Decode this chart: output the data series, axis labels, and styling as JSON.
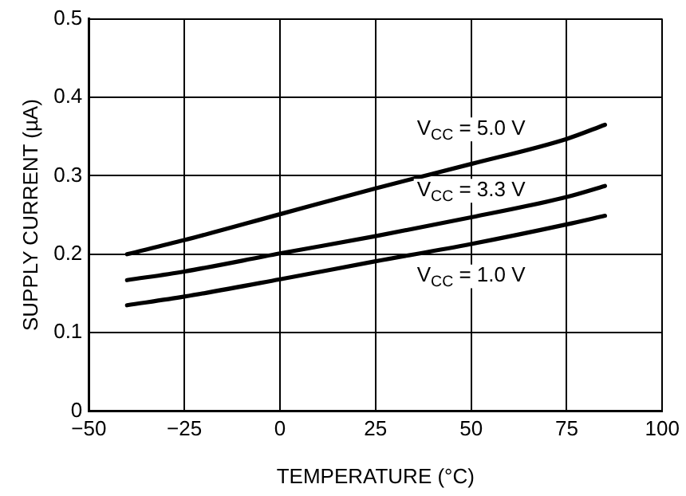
{
  "chart_data": {
    "type": "line",
    "xlabel": "TEMPERATURE (°C)",
    "ylabel": "SUPPLY CURRENT (µA)",
    "x": [
      -40,
      -25,
      0,
      25,
      50,
      75,
      85
    ],
    "series": [
      {
        "name": "V$_{CC}$ = 5.0 V",
        "color": "#000000",
        "values": [
          0.2,
          0.218,
          0.251,
          0.284,
          0.315,
          0.347,
          0.365
        ]
      },
      {
        "name": "V$_{CC}$ = 3.3 V",
        "color": "#000000",
        "values": [
          0.167,
          0.178,
          0.201,
          0.223,
          0.247,
          0.273,
          0.287
        ]
      },
      {
        "name": "V$_{CC}$ = 1.0 V",
        "color": "#000000",
        "values": [
          0.135,
          0.146,
          0.168,
          0.191,
          0.213,
          0.238,
          0.249
        ]
      }
    ],
    "xlim": [
      -50,
      100
    ],
    "xticks": [
      {
        "value": -50,
        "label": "−50"
      },
      {
        "value": -25,
        "label": "−25"
      },
      0,
      25,
      50,
      75,
      100
    ],
    "ylim": [
      0,
      0.5
    ],
    "yticks": [
      0,
      0.1,
      0.2,
      0.3,
      0.4,
      0.5
    ],
    "grid": true,
    "legend": false,
    "marker": "none",
    "line_style": "solid"
  }
}
